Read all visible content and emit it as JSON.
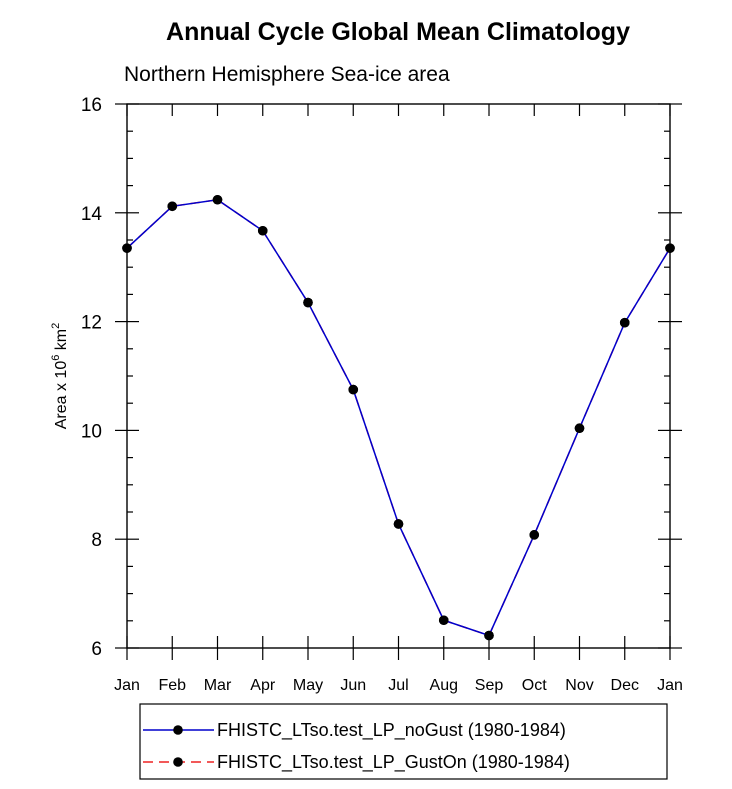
{
  "chart_data": {
    "type": "line",
    "title": "Annual Cycle Global Mean Climatology",
    "subtitle": "Northern Hemisphere Sea-ice area",
    "ylabel_prefix": "Area x 10",
    "ylabel_exp": "6",
    "ylabel_unit": " km",
    "ylabel_unit_exp": "2",
    "categories": [
      "Jan",
      "Feb",
      "Mar",
      "Apr",
      "May",
      "Jun",
      "Jul",
      "Aug",
      "Sep",
      "Oct",
      "Nov",
      "Dec",
      "Jan"
    ],
    "ylim": [
      6,
      16
    ],
    "yticks": [
      "6",
      "8",
      "10",
      "12",
      "14",
      "16"
    ],
    "series": [
      {
        "name": "FHISTC_LTso.test_LP_noGust (1980-1984)",
        "color": "#0000cc",
        "dash": "solid",
        "values": [
          13.35,
          14.12,
          14.24,
          13.67,
          12.35,
          10.75,
          8.28,
          6.51,
          6.23,
          8.08,
          10.04,
          11.98,
          13.35
        ]
      },
      {
        "name": "FHISTC_LTso.test_LP_GustOn (1980-1984)",
        "color": "#ee2222",
        "dash": "dashed",
        "values": [
          13.35,
          14.12,
          14.24,
          13.67,
          12.35,
          10.75,
          8.28,
          6.51,
          6.23,
          8.08,
          10.04,
          11.98,
          13.35
        ]
      }
    ],
    "legend_position": "bottom"
  }
}
